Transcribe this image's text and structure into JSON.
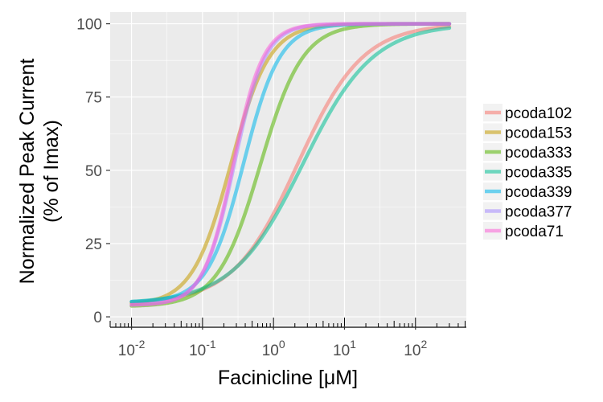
{
  "chart_data": {
    "type": "line",
    "x_scale": "log",
    "xlabel": "Facinicline [μM]",
    "ylabel_line1": "Normalized Peak Current",
    "ylabel_line2": "(% of Imax)",
    "xlim": [
      0.01,
      300
    ],
    "ylim": [
      0,
      100
    ],
    "x_ticks": [
      {
        "value": 0.01,
        "base": "10",
        "exp": "-2"
      },
      {
        "value": 0.1,
        "base": "10",
        "exp": "-1"
      },
      {
        "value": 1,
        "base": "10",
        "exp": "0"
      },
      {
        "value": 10,
        "base": "10",
        "exp": "1"
      },
      {
        "value": 100,
        "base": "10",
        "exp": "2"
      }
    ],
    "y_ticks": [
      {
        "value": 0,
        "label": "0"
      },
      {
        "value": 25,
        "label": "25"
      },
      {
        "value": 50,
        "label": "50"
      },
      {
        "value": 75,
        "label": "75"
      },
      {
        "value": 100,
        "label": "100"
      }
    ],
    "grid": true,
    "panel_background": "#ebebeb",
    "grid_color": "#ffffff",
    "legend_position": "right",
    "series": [
      {
        "name": "pcoda102",
        "color": "#f8766d",
        "bottom": 4.5,
        "top": 100,
        "ec50": 2.2,
        "hill": 0.95
      },
      {
        "name": "pcoda153",
        "color": "#c49a00",
        "bottom": 4,
        "top": 100,
        "ec50": 0.25,
        "hill": 1.6
      },
      {
        "name": "pcoda333",
        "color": "#53b400",
        "bottom": 3.5,
        "top": 100,
        "ec50": 0.65,
        "hill": 1.45
      },
      {
        "name": "pcoda335",
        "color": "#00c094",
        "bottom": 4.5,
        "top": 100,
        "ec50": 2.6,
        "hill": 0.88
      },
      {
        "name": "pcoda339",
        "color": "#00b6eb",
        "bottom": 5,
        "top": 100,
        "ec50": 0.38,
        "hill": 1.7
      },
      {
        "name": "pcoda377",
        "color": "#a58aff",
        "bottom": 4,
        "top": 100,
        "ec50": 0.28,
        "hill": 2.0
      },
      {
        "name": "pcoda71",
        "color": "#fb61d7",
        "bottom": 4,
        "top": 100,
        "ec50": 0.27,
        "hill": 2.05
      }
    ]
  }
}
